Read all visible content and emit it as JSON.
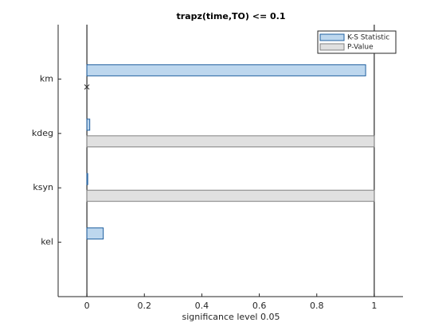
{
  "chart_data": {
    "type": "barh",
    "title": "trapz(time,TO) <= 0.1",
    "xlabel": "significance level 0.05",
    "categories": [
      "km",
      "kdeg",
      "ksyn",
      "kel"
    ],
    "series": [
      {
        "name": "K-S Statistic",
        "color": "#bdd7ee",
        "edgecolor": "#1f5f9f",
        "values": [
          0.97,
          0.01,
          0.003,
          0.057
        ]
      },
      {
        "name": "P-Value",
        "color": "#e0e0e0",
        "edgecolor": "#808080",
        "values": [
          0,
          1,
          1,
          null
        ]
      }
    ],
    "xlim": [
      -0.1,
      1.1
    ],
    "xticks": [
      0,
      0.2,
      0.4,
      0.6,
      0.8,
      1
    ],
    "reference_lines": [
      0,
      1
    ],
    "legend": "upper-right"
  }
}
